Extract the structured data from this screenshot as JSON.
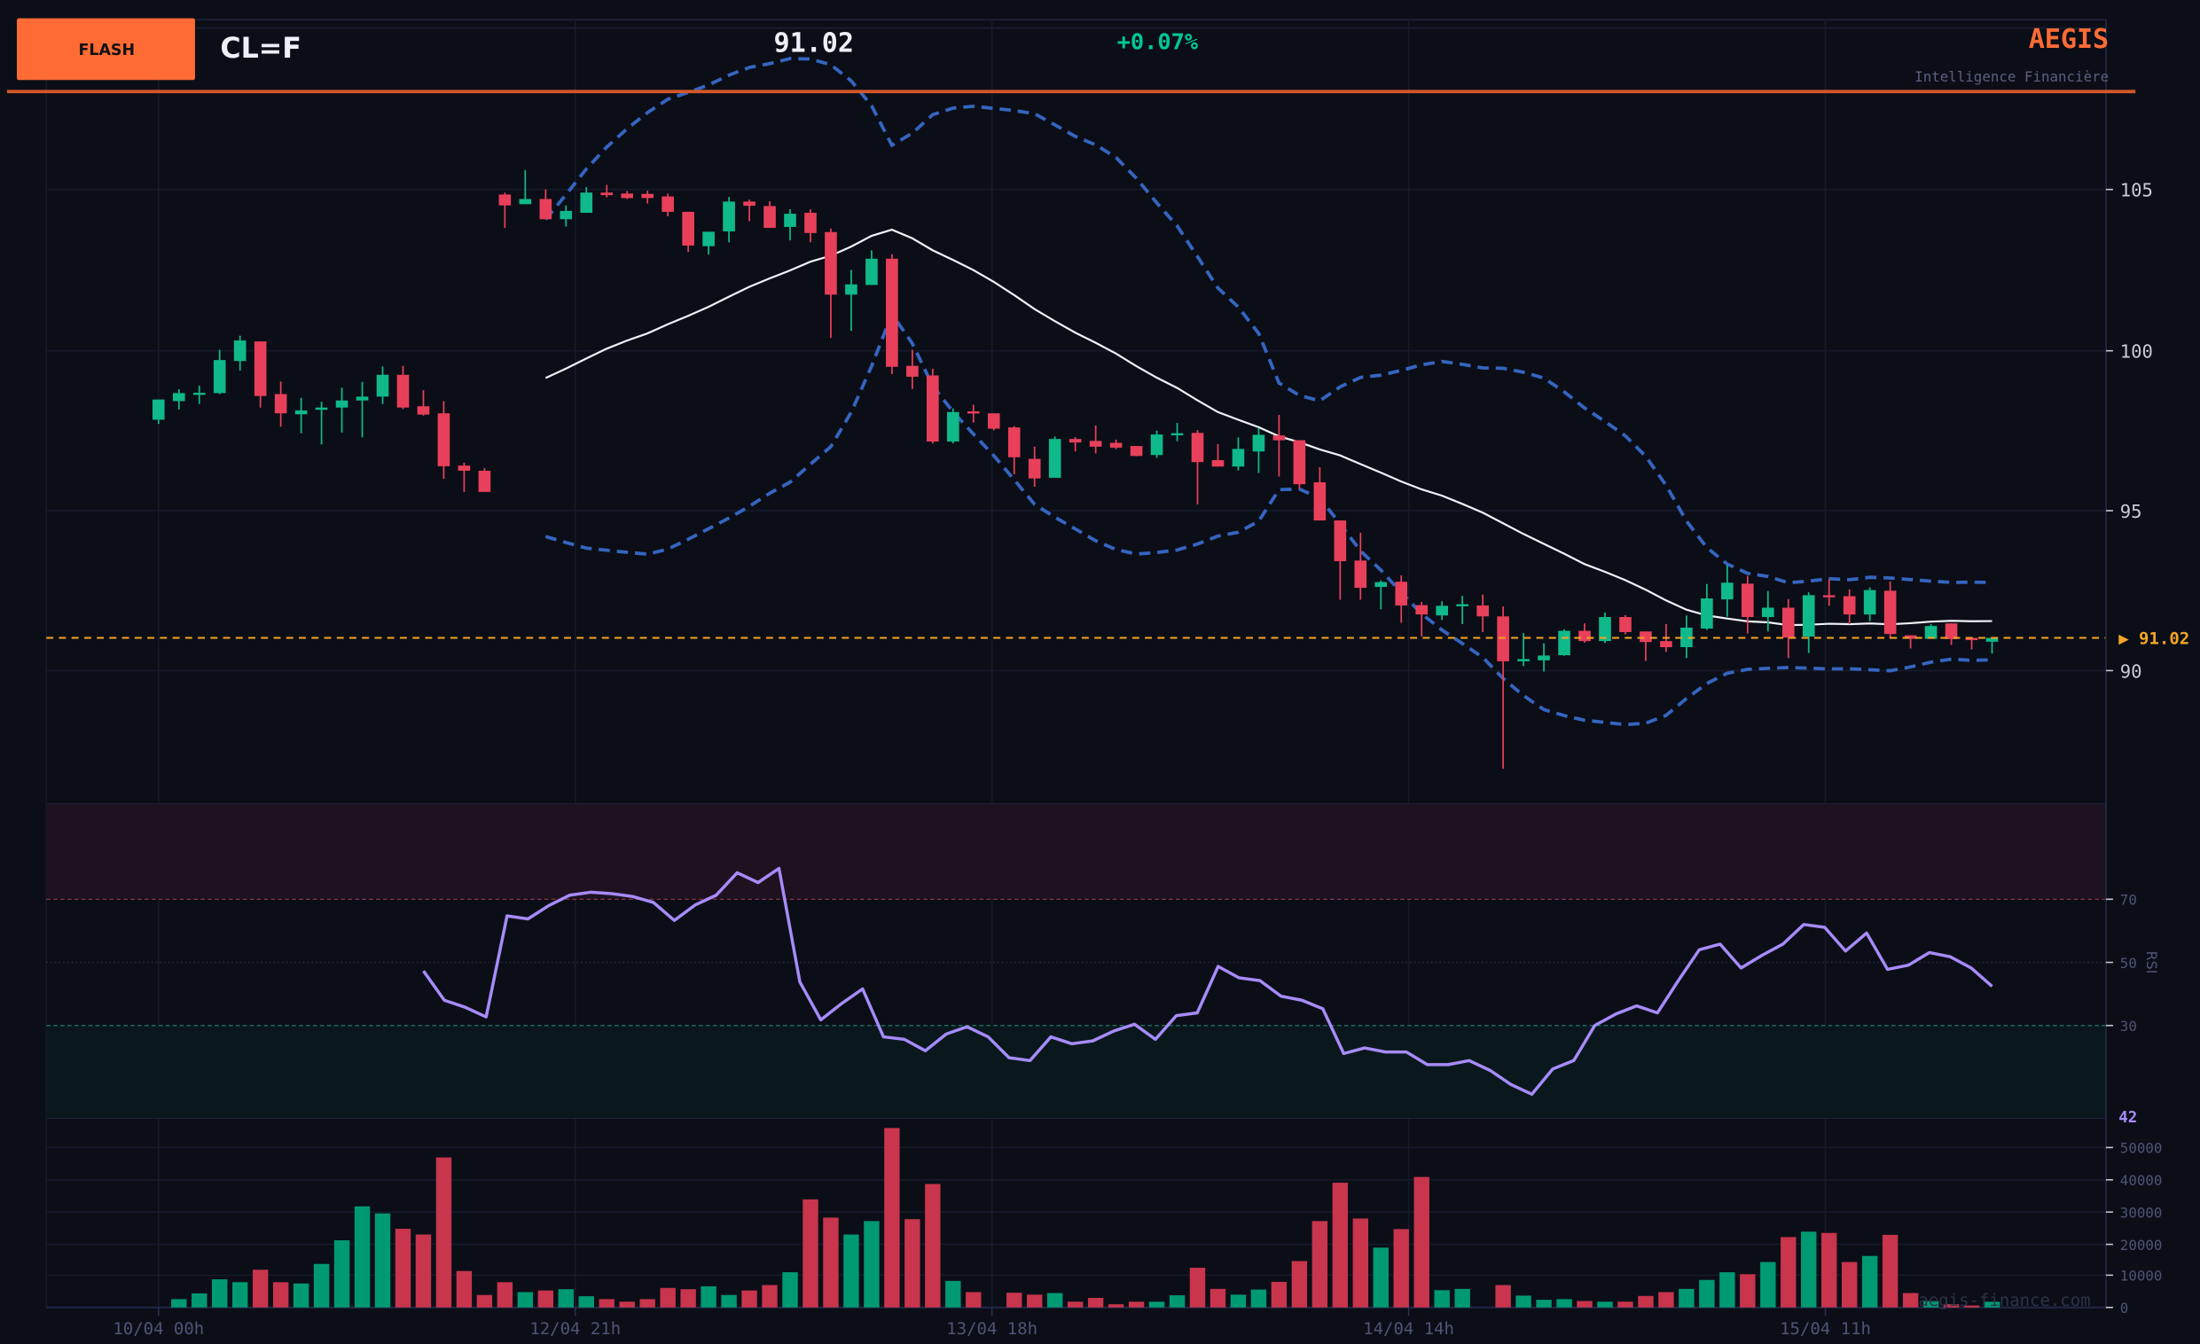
{
  "header": {
    "badge": "FLASH",
    "ticker": "CL=F",
    "price": "91.02",
    "change": "+0.07%",
    "brand": "AEGIS",
    "brand_subtitle": "Intelligence Financière"
  },
  "colors": {
    "background": "#0b0e17",
    "accent": "#ff6b35",
    "up": "#0fb98a",
    "down": "#e8405a",
    "band": "#3565c0",
    "rsi": "#a78bfa",
    "last_price": "#f5a623"
  },
  "price_axis": {
    "ticks": [
      "105",
      "100",
      "95",
      "90"
    ],
    "last_price_label": "▶ 91.02"
  },
  "rsi_axis": {
    "label": "RSI",
    "ticks": [
      "70",
      "50",
      "30"
    ],
    "current_value": "42"
  },
  "volume_axis": {
    "ticks": [
      "50000",
      "40000",
      "30000",
      "20000",
      "10000",
      "0"
    ]
  },
  "x_axis": {
    "ticks": [
      "10/04 00h",
      "12/04 21h",
      "13/04 18h",
      "14/04 14h",
      "15/04 11h"
    ]
  },
  "watermark": "aegis-finance.com",
  "chart_data": {
    "type": "candlestick",
    "symbol": "CL=F",
    "last_price": 91.02,
    "ylim": [
      86,
      109
    ],
    "indicators": [
      "SMA 20",
      "Bollinger Bands (20, 2)",
      "RSI 14",
      "Volume"
    ],
    "ohlc": [
      [
        97.82,
        98.45,
        97.69,
        98.45
      ],
      [
        98.4,
        98.77,
        98.14,
        98.65
      ],
      [
        98.63,
        98.88,
        98.31,
        98.66
      ],
      [
        98.65,
        100.0,
        98.62,
        99.68
      ],
      [
        99.65,
        100.44,
        99.35,
        100.29
      ],
      [
        100.26,
        100.26,
        98.2,
        98.56
      ],
      [
        98.62,
        99.01,
        97.6,
        98.02
      ],
      [
        97.99,
        98.5,
        97.4,
        98.11
      ],
      [
        98.13,
        98.38,
        97.05,
        98.2
      ],
      [
        98.2,
        98.82,
        97.42,
        98.42
      ],
      [
        98.42,
        99.0,
        97.27,
        98.54
      ],
      [
        98.54,
        99.48,
        98.31,
        99.22
      ],
      [
        99.22,
        99.5,
        98.15,
        98.2
      ],
      [
        98.24,
        98.74,
        97.95,
        97.98
      ],
      [
        98.02,
        98.4,
        95.98,
        96.37
      ],
      [
        96.39,
        96.48,
        95.57,
        96.23
      ],
      [
        96.23,
        96.31,
        95.57,
        95.57
      ],
      [
        104.84,
        104.9,
        103.8,
        104.5
      ],
      [
        104.54,
        105.6,
        104.54,
        104.7
      ],
      [
        104.7,
        105.0,
        104.07,
        104.07
      ],
      [
        104.07,
        104.5,
        103.84,
        104.33
      ],
      [
        104.27,
        105.07,
        104.27,
        104.9
      ],
      [
        104.9,
        105.14,
        104.75,
        104.82
      ],
      [
        104.87,
        104.95,
        104.7,
        104.73
      ],
      [
        104.86,
        104.96,
        104.56,
        104.73
      ],
      [
        104.78,
        104.87,
        104.16,
        104.3
      ],
      [
        104.3,
        104.3,
        103.05,
        103.25
      ],
      [
        103.23,
        103.68,
        102.97,
        103.68
      ],
      [
        103.69,
        104.76,
        103.35,
        104.62
      ],
      [
        104.62,
        104.68,
        104.01,
        104.49
      ],
      [
        104.48,
        104.63,
        103.8,
        103.8
      ],
      [
        103.83,
        104.38,
        103.41,
        104.24
      ],
      [
        104.27,
        104.38,
        103.35,
        103.64
      ],
      [
        103.67,
        103.78,
        100.37,
        101.72
      ],
      [
        101.72,
        102.49,
        100.59,
        102.04
      ],
      [
        102.02,
        103.1,
        102.02,
        102.84
      ],
      [
        102.84,
        102.98,
        99.24,
        99.47
      ],
      [
        99.5,
        100.0,
        98.78,
        99.16
      ],
      [
        99.2,
        99.41,
        97.08,
        97.14
      ],
      [
        97.14,
        98.17,
        97.08,
        98.06
      ],
      [
        98.08,
        98.29,
        97.73,
        98.02
      ],
      [
        98.02,
        98.02,
        97.49,
        97.54
      ],
      [
        97.58,
        97.62,
        96.12,
        96.65
      ],
      [
        96.6,
        96.98,
        95.73,
        95.99
      ],
      [
        96.01,
        97.3,
        96.01,
        97.22
      ],
      [
        97.22,
        97.28,
        96.83,
        97.11
      ],
      [
        97.16,
        97.64,
        96.77,
        96.98
      ],
      [
        97.1,
        97.2,
        96.9,
        96.95
      ],
      [
        97.0,
        97.0,
        96.68,
        96.69
      ],
      [
        96.72,
        97.48,
        96.63,
        97.36
      ],
      [
        97.34,
        97.72,
        97.15,
        97.4
      ],
      [
        97.41,
        97.5,
        95.18,
        96.5
      ],
      [
        96.56,
        97.06,
        96.36,
        96.36
      ],
      [
        96.36,
        97.27,
        96.24,
        96.91
      ],
      [
        96.83,
        97.56,
        96.16,
        97.35
      ],
      [
        97.33,
        97.97,
        96.05,
        97.18
      ],
      [
        97.18,
        97.18,
        95.66,
        95.81
      ],
      [
        95.87,
        96.34,
        94.68,
        94.68
      ],
      [
        94.68,
        94.68,
        92.21,
        93.41
      ],
      [
        93.43,
        94.3,
        92.21,
        92.58
      ],
      [
        92.61,
        92.81,
        91.91,
        92.76
      ],
      [
        92.77,
        92.97,
        91.49,
        92.03
      ],
      [
        92.04,
        92.14,
        91.06,
        91.75
      ],
      [
        91.72,
        92.16,
        91.58,
        92.02
      ],
      [
        92.01,
        92.33,
        91.45,
        92.07
      ],
      [
        92.03,
        92.37,
        91.2,
        91.69
      ],
      [
        91.69,
        92.0,
        86.94,
        90.29
      ],
      [
        90.29,
        91.17,
        90.14,
        90.36
      ],
      [
        90.32,
        90.85,
        89.97,
        90.47
      ],
      [
        90.48,
        91.29,
        90.46,
        91.24
      ],
      [
        91.24,
        91.47,
        90.87,
        90.92
      ],
      [
        90.92,
        91.81,
        90.86,
        91.67
      ],
      [
        91.67,
        91.73,
        91.13,
        91.2
      ],
      [
        91.22,
        91.22,
        90.3,
        90.89
      ],
      [
        90.92,
        91.45,
        90.58,
        90.73
      ],
      [
        90.73,
        91.72,
        90.39,
        91.34
      ],
      [
        91.31,
        92.7,
        91.27,
        92.25
      ],
      [
        92.22,
        93.28,
        91.68,
        92.74
      ],
      [
        92.71,
        92.95,
        91.16,
        91.67
      ],
      [
        91.67,
        92.48,
        91.22,
        91.96
      ],
      [
        91.96,
        92.23,
        90.39,
        91.03
      ],
      [
        91.06,
        92.44,
        90.55,
        92.35
      ],
      [
        92.35,
        92.85,
        92.02,
        92.31
      ],
      [
        92.32,
        92.53,
        91.45,
        91.75
      ],
      [
        91.75,
        92.59,
        91.54,
        92.51
      ],
      [
        92.49,
        92.78,
        90.99,
        91.14
      ],
      [
        91.1,
        91.1,
        90.69,
        90.99
      ],
      [
        90.99,
        91.45,
        90.99,
        91.39
      ],
      [
        91.47,
        91.47,
        90.8,
        90.98
      ],
      [
        91.02,
        91.02,
        90.66,
        90.95
      ],
      [
        90.9,
        91.02,
        90.53,
        91.02
      ]
    ],
    "volume": [
      0,
      2600,
      4400,
      8800,
      7900,
      11800,
      7900,
      7500,
      13600,
      21000,
      31600,
      29400,
      24600,
      22800,
      46900,
      11400,
      3900,
      7900,
      4800,
      5300,
      5700,
      3500,
      2600,
      1800,
      2600,
      6100,
      5700,
      6600,
      3900,
      5300,
      7000,
      11000,
      33800,
      28100,
      22800,
      27000,
      56100,
      27600,
      38600,
      8300,
      4800,
      0,
      4600,
      4000,
      4500,
      1800,
      3000,
      1000,
      1800,
      1800,
      3800,
      12400,
      5800,
      4000,
      5600,
      8000,
      14500,
      27000,
      39000,
      27800,
      18700,
      24500,
      40800,
      5400,
      5800,
      0,
      7000,
      3700,
      2400,
      2600,
      2000,
      1800,
      1800,
      3600,
      4800,
      5800,
      8600,
      11000,
      10400,
      14200,
      22000,
      23700,
      23300,
      14200,
      16100,
      22700,
      4500,
      2000,
      1000,
      600,
      1800
    ],
    "rsi_start_index": 13,
    "rsi": [
      47.3,
      38,
      35.8,
      32.7,
      64.7,
      63.8,
      68,
      71.3,
      72.2,
      71.8,
      70.9,
      69,
      63.3,
      68.2,
      71.3,
      78.4,
      75.3,
      79.8,
      43.8,
      31.8,
      37,
      41.6,
      26.4,
      25.6,
      22,
      27.3,
      29.6,
      26.4,
      19.8,
      18.9,
      26.4,
      24.2,
      25.1,
      28.2,
      30.4,
      25.6,
      33.1,
      34,
      48.7,
      45.1,
      44.2,
      39.3,
      38,
      35.3,
      21.1,
      22.9,
      21.6,
      21.6,
      17.6,
      17.6,
      18.9,
      15.8,
      11.3,
      8.2,
      16.2,
      18.9,
      30,
      33.6,
      36.2,
      34,
      44.2,
      54,
      55.8,
      48.2,
      52.2,
      55.8,
      62,
      61.1,
      53.6,
      59.3,
      47.8,
      49.1,
      53.1,
      51.8,
      48.2,
      42.4
    ],
    "rsi_levels": {
      "overbought": 70,
      "mid": 50,
      "oversold": 30
    },
    "volume_ylim": [
      0,
      56000
    ]
  }
}
